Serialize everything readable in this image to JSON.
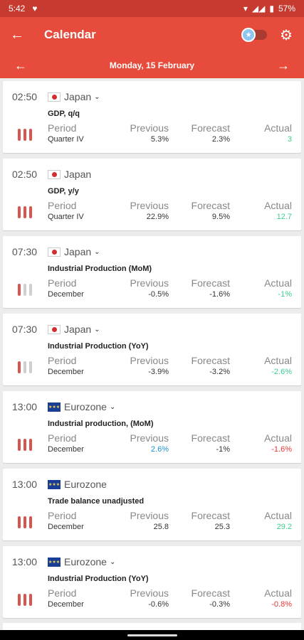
{
  "status": {
    "time": "5:42",
    "battery": "57%"
  },
  "appbar": {
    "title": "Calendar"
  },
  "datebar": {
    "date": "Monday, 15 February"
  },
  "labels": {
    "period": "Period",
    "previous": "Previous",
    "forecast": "Forecast",
    "actual": "Actual"
  },
  "events": [
    {
      "time": "02:50",
      "country": "Japan",
      "flag": "jp",
      "chevron": true,
      "name": "GDP, q/q",
      "period": "Quarter IV",
      "previous": "5.3%",
      "forecast": "2.3%",
      "actual": "3",
      "actual_color": "green",
      "previous_color": "",
      "importance": 3
    },
    {
      "time": "02:50",
      "country": "Japan",
      "flag": "jp",
      "chevron": false,
      "name": "GDP, y/y",
      "period": "Quarter IV",
      "previous": "22.9%",
      "forecast": "9.5%",
      "actual": "12.7",
      "actual_color": "green",
      "previous_color": "",
      "importance": 3
    },
    {
      "time": "07:30",
      "country": "Japan",
      "flag": "jp",
      "chevron": true,
      "name": "Industrial Production (MoM)",
      "period": "December",
      "previous": "-0.5%",
      "forecast": "-1.6%",
      "actual": "-1%",
      "actual_color": "green",
      "previous_color": "",
      "importance": 1
    },
    {
      "time": "07:30",
      "country": "Japan",
      "flag": "jp",
      "chevron": true,
      "name": "Industrial Production (YoY)",
      "period": "December",
      "previous": "-3.9%",
      "forecast": "-3.2%",
      "actual": "-2.6%",
      "actual_color": "green",
      "previous_color": "",
      "importance": 1
    },
    {
      "time": "13:00",
      "country": "Eurozone",
      "flag": "eu",
      "chevron": true,
      "name": "Industrial production, (MoM)",
      "period": "December",
      "previous": "2.6%",
      "forecast": "-1%",
      "actual": "-1.6%",
      "actual_color": "red",
      "previous_color": "blue",
      "importance": 3
    },
    {
      "time": "13:00",
      "country": "Eurozone",
      "flag": "eu",
      "chevron": false,
      "name": "Trade balance unadjusted",
      "period": "December",
      "previous": "25.8",
      "forecast": "25.3",
      "actual": "29.2",
      "actual_color": "green",
      "previous_color": "",
      "importance": 3
    },
    {
      "time": "13:00",
      "country": "Eurozone",
      "flag": "eu",
      "chevron": true,
      "name": "Industrial Production (YoY)",
      "period": "December",
      "previous": "-0.6%",
      "forecast": "-0.3%",
      "actual": "-0.8%",
      "actual_color": "red",
      "previous_color": "",
      "importance": 3
    }
  ],
  "colors": {
    "accent": "#e64b3c",
    "green": "#3ecf8e",
    "red": "#e53935",
    "blue": "#1e90d6"
  }
}
